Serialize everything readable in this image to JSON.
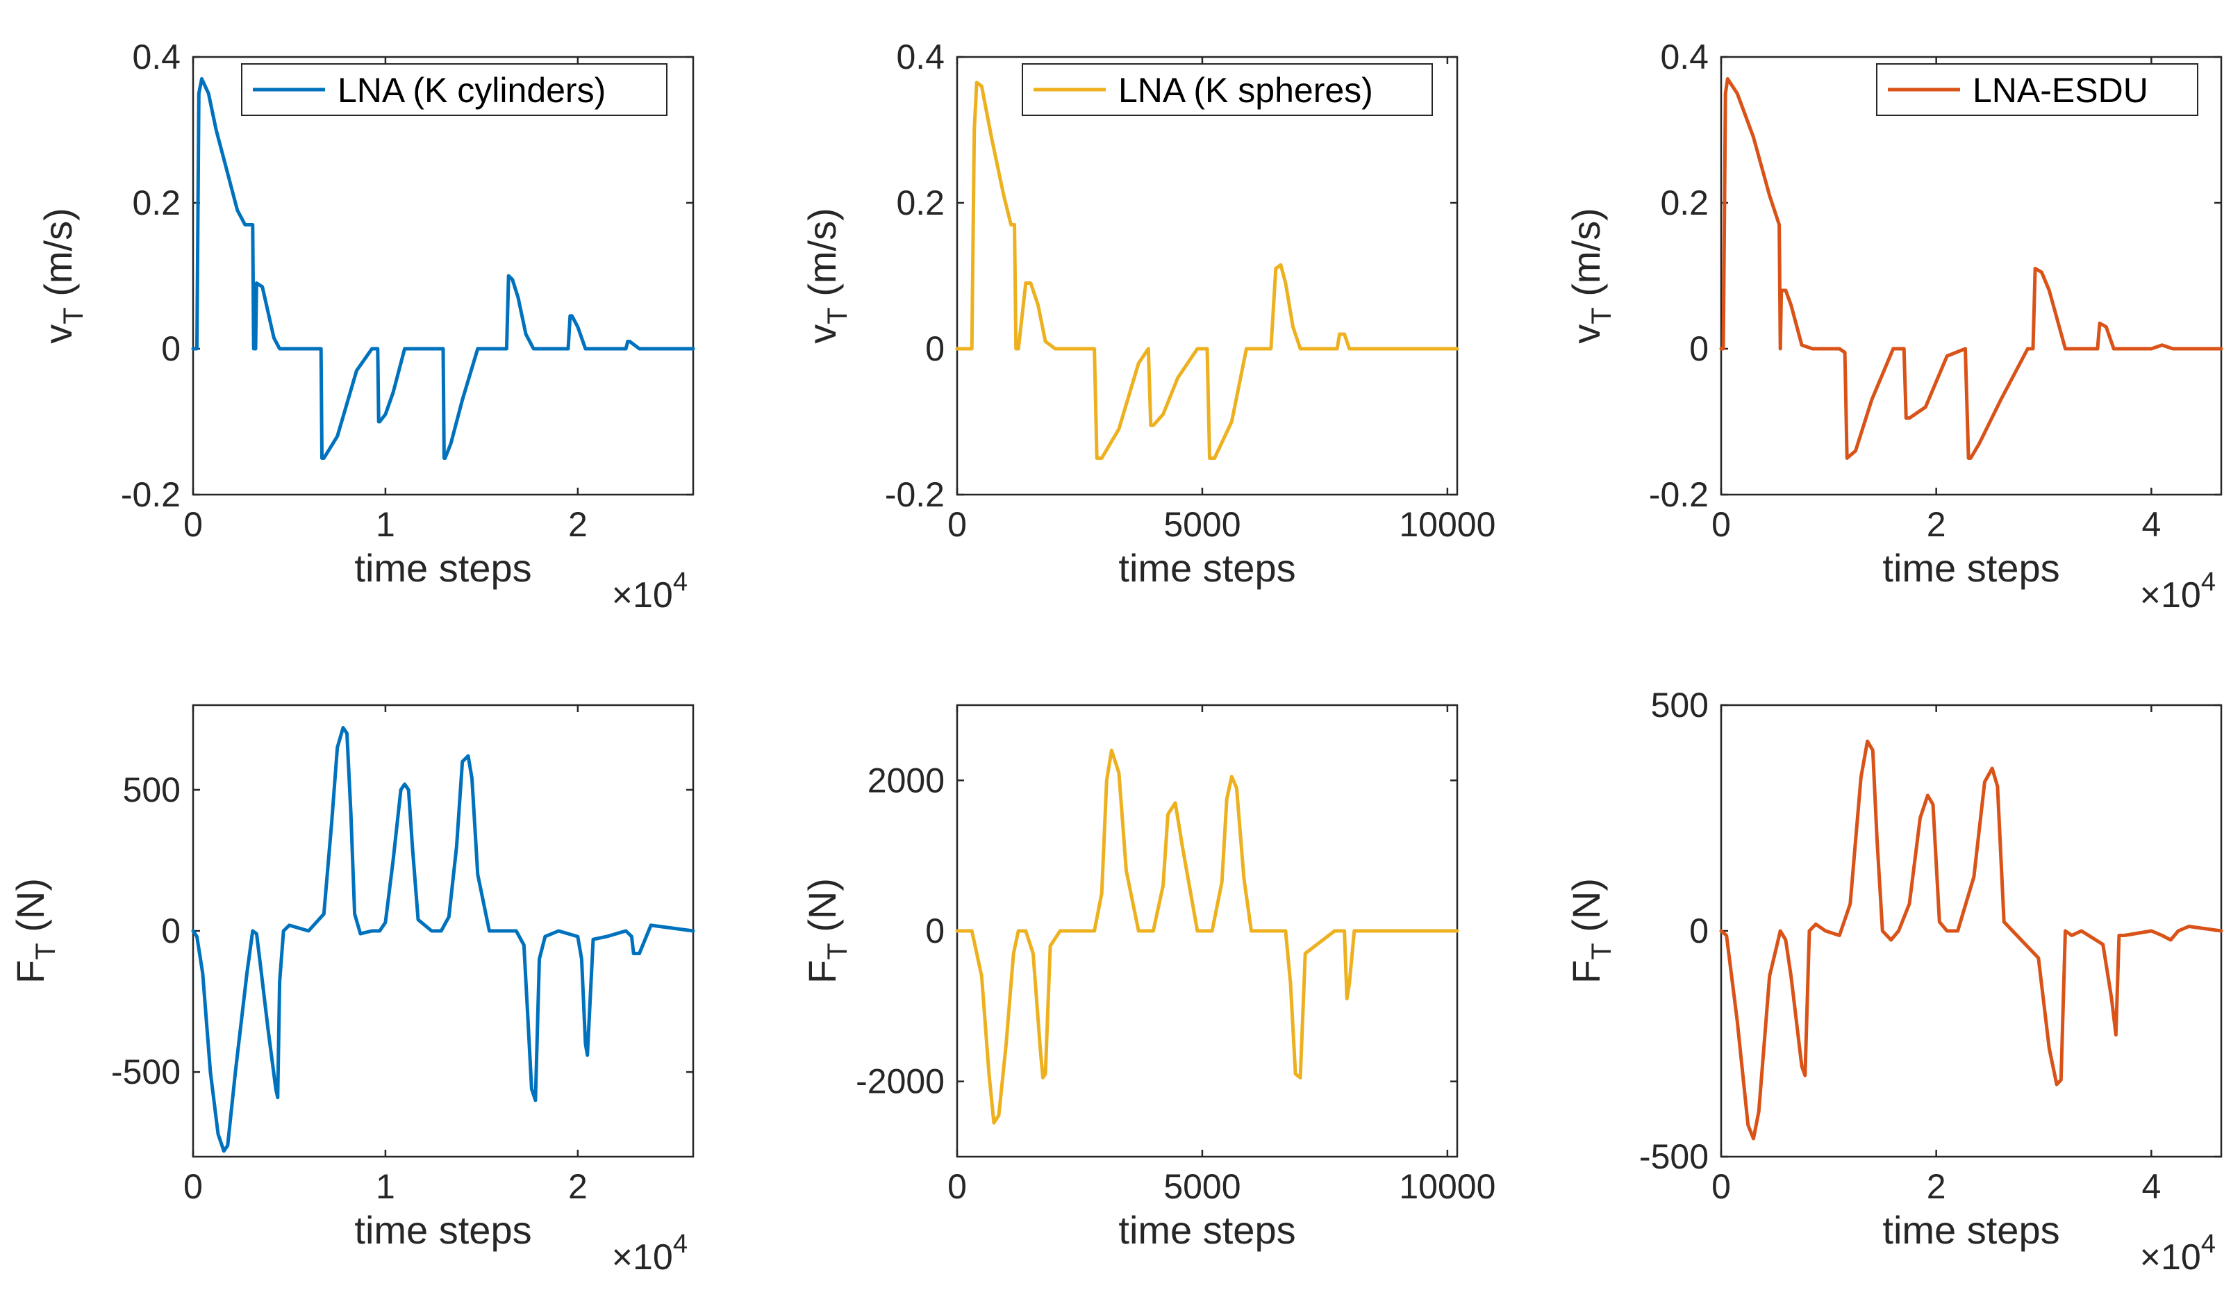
{
  "colors": {
    "blue": "#0072BD",
    "yellow": "#EDB120",
    "orange": "#D95319",
    "axis": "#262626"
  },
  "chart_data": [
    {
      "type": "line",
      "id": "vt_cyl",
      "color": "#0072BD",
      "legend": "LNA (K cylinders)",
      "xlabel": "time steps",
      "ylabel_main": "v",
      "ylabel_sub": "T",
      "ylabel_tail": " (m/s)",
      "xlim": [
        0,
        26000
      ],
      "ylim": [
        -0.2,
        0.4
      ],
      "xticks": [
        0,
        10000,
        20000
      ],
      "xtick_labels": [
        "0",
        "1",
        "2"
      ],
      "yticks": [
        -0.2,
        0,
        0.2,
        0.4
      ],
      "ytick_labels": [
        "-0.2",
        "0",
        "0.2",
        "0.4"
      ],
      "x_multiplier_base": "×10",
      "x_multiplier_exp": "4",
      "x": [
        0,
        200,
        300,
        450,
        800,
        1200,
        1700,
        2300,
        2700,
        3000,
        3100,
        3150,
        3250,
        3300,
        3600,
        3900,
        4200,
        4500,
        5000,
        6000,
        6650,
        6700,
        6800,
        7500,
        8500,
        9300,
        9600,
        9650,
        9700,
        10000,
        10400,
        11000,
        11500,
        12000,
        12800,
        13000,
        13050,
        13100,
        13400,
        14000,
        14800,
        15500,
        16000,
        16300,
        16400,
        16600,
        16900,
        17300,
        17700,
        18000,
        18500,
        19000,
        19500,
        19600,
        19700,
        20000,
        20400,
        20800,
        21500,
        22500,
        22600,
        22700,
        23200,
        24000,
        26000
      ],
      "values": [
        0,
        0,
        0.35,
        0.37,
        0.35,
        0.3,
        0.25,
        0.19,
        0.17,
        0.17,
        0.17,
        0,
        0,
        0.09,
        0.085,
        0.05,
        0.015,
        0,
        0,
        0,
        0,
        -0.15,
        -0.15,
        -0.12,
        -0.03,
        0,
        0,
        -0.1,
        -0.1,
        -0.09,
        -0.06,
        0,
        0,
        0,
        0,
        0,
        -0.15,
        -0.15,
        -0.13,
        -0.07,
        0,
        0,
        0,
        0,
        0.1,
        0.095,
        0.07,
        0.02,
        0,
        0,
        0,
        0,
        0,
        0.045,
        0.045,
        0.03,
        0,
        0,
        0,
        0,
        0.01,
        0.01,
        0,
        0,
        0
      ]
    },
    {
      "type": "line",
      "id": "vt_sph",
      "color": "#EDB120",
      "legend": "LNA (K spheres)",
      "xlabel": "time steps",
      "ylabel_main": "v",
      "ylabel_sub": "T",
      "ylabel_tail": " (m/s)",
      "xlim": [
        0,
        10200
      ],
      "ylim": [
        -0.2,
        0.4
      ],
      "xticks": [
        0,
        5000,
        10000
      ],
      "xtick_labels": [
        "0",
        "5000",
        "10000"
      ],
      "yticks": [
        -0.2,
        0,
        0.2,
        0.4
      ],
      "ytick_labels": [
        "-0.2",
        "0",
        "0.2",
        "0.4"
      ],
      "x_multiplier_base": "",
      "x_multiplier_exp": "",
      "x": [
        0,
        300,
        350,
        400,
        500,
        700,
        950,
        1100,
        1170,
        1200,
        1250,
        1400,
        1500,
        1650,
        1800,
        2000,
        2300,
        2800,
        2850,
        2950,
        3300,
        3700,
        3900,
        3950,
        4000,
        4200,
        4500,
        4900,
        5100,
        5150,
        5250,
        5600,
        5900,
        6400,
        6500,
        6600,
        6700,
        6850,
        7000,
        7200,
        7500,
        7750,
        7800,
        7900,
        8000,
        8500,
        10200
      ],
      "values": [
        0,
        0,
        0.3,
        0.365,
        0.36,
        0.29,
        0.21,
        0.17,
        0.17,
        0,
        0,
        0.09,
        0.09,
        0.06,
        0.01,
        0,
        0,
        0,
        -0.15,
        -0.15,
        -0.11,
        -0.02,
        0,
        -0.105,
        -0.105,
        -0.09,
        -0.04,
        0,
        0,
        -0.15,
        -0.15,
        -0.1,
        0,
        0,
        0.11,
        0.115,
        0.09,
        0.03,
        0,
        0,
        0,
        0,
        0.02,
        0.02,
        0,
        0,
        0
      ]
    },
    {
      "type": "line",
      "id": "vt_esdu",
      "color": "#D95319",
      "legend": "LNA-ESDU",
      "xlabel": "time steps",
      "ylabel_main": "v",
      "ylabel_sub": "T",
      "ylabel_tail": " (m/s)",
      "xlim": [
        0,
        46500
      ],
      "ylim": [
        -0.2,
        0.4
      ],
      "xticks": [
        0,
        20000,
        40000
      ],
      "xtick_labels": [
        "0",
        "2",
        "4"
      ],
      "yticks": [
        -0.2,
        0,
        0.2,
        0.4
      ],
      "ytick_labels": [
        "-0.2",
        "0",
        "0.2",
        "0.4"
      ],
      "x_multiplier_base": "×10",
      "x_multiplier_exp": "4",
      "x": [
        0,
        200,
        400,
        600,
        1500,
        3000,
        4500,
        5400,
        5500,
        5600,
        6000,
        6500,
        7500,
        8500,
        11000,
        11500,
        11700,
        12500,
        14000,
        16000,
        17000,
        17200,
        17500,
        19000,
        21000,
        22700,
        23000,
        23200,
        24000,
        26000,
        28500,
        29000,
        29200,
        29800,
        30500,
        32000,
        35000,
        35200,
        35800,
        36500,
        40000,
        41000,
        42000,
        46500
      ],
      "values": [
        0,
        0,
        0.35,
        0.37,
        0.35,
        0.29,
        0.21,
        0.17,
        0,
        0.08,
        0.08,
        0.06,
        0.005,
        0,
        0,
        -0.005,
        -0.15,
        -0.14,
        -0.07,
        0,
        0,
        -0.095,
        -0.095,
        -0.08,
        -0.01,
        0,
        -0.15,
        -0.15,
        -0.13,
        -0.07,
        0,
        0,
        0.11,
        0.105,
        0.08,
        0,
        0,
        0.035,
        0.03,
        0,
        0,
        0.005,
        0,
        0
      ]
    },
    {
      "type": "line",
      "id": "ft_cyl",
      "color": "#0072BD",
      "legend": "",
      "xlabel": "time steps",
      "ylabel_main": "F",
      "ylabel_sub": "T",
      "ylabel_tail": " (N)",
      "xlim": [
        0,
        26000
      ],
      "ylim": [
        -800,
        800
      ],
      "xticks": [
        0,
        10000,
        20000
      ],
      "xtick_labels": [
        "0",
        "1",
        "2"
      ],
      "yticks": [
        -500,
        0,
        500
      ],
      "ytick_labels": [
        "-500",
        "0",
        "500"
      ],
      "x_multiplier_base": "×10",
      "x_multiplier_exp": "4",
      "x": [
        0,
        200,
        500,
        900,
        1300,
        1600,
        1800,
        2200,
        2800,
        3100,
        3300,
        3500,
        3900,
        4300,
        4400,
        4500,
        4700,
        5000,
        6000,
        6800,
        7200,
        7500,
        7800,
        8000,
        8200,
        8400,
        8700,
        9300,
        9700,
        10000,
        10400,
        10800,
        11000,
        11200,
        11400,
        11700,
        12400,
        12900,
        13300,
        13700,
        14000,
        14300,
        14500,
        14800,
        15400,
        16200,
        16800,
        17200,
        17400,
        17600,
        17800,
        18000,
        18300,
        19000,
        20000,
        20200,
        20400,
        20500,
        20800,
        21500,
        22500,
        22800,
        22900,
        23200,
        23800,
        26000
      ],
      "values": [
        0,
        -20,
        -150,
        -500,
        -720,
        -780,
        -760,
        -500,
        -150,
        0,
        -10,
        -120,
        -350,
        -560,
        -590,
        -180,
        0,
        20,
        0,
        60,
        380,
        650,
        720,
        700,
        420,
        60,
        -10,
        0,
        0,
        30,
        250,
        500,
        520,
        500,
        300,
        40,
        0,
        0,
        50,
        300,
        600,
        620,
        540,
        200,
        0,
        0,
        0,
        -50,
        -300,
        -560,
        -600,
        -100,
        -20,
        0,
        -20,
        -100,
        -400,
        -440,
        -30,
        -20,
        0,
        -20,
        -80,
        -80,
        20,
        0
      ]
    },
    {
      "type": "line",
      "id": "ft_sph",
      "color": "#EDB120",
      "legend": "",
      "xlabel": "time steps",
      "ylabel_main": "F",
      "ylabel_sub": "T",
      "ylabel_tail": " (N)",
      "xlim": [
        0,
        10200
      ],
      "ylim": [
        -3000,
        3000
      ],
      "xticks": [
        0,
        5000,
        10000
      ],
      "xtick_labels": [
        "0",
        "5000",
        "10000"
      ],
      "yticks": [
        -2000,
        0,
        2000
      ],
      "ytick_labels": [
        "-2000",
        "0",
        "2000"
      ],
      "x_multiplier_base": "",
      "x_multiplier_exp": "",
      "x": [
        0,
        300,
        500,
        650,
        750,
        850,
        1000,
        1150,
        1250,
        1400,
        1550,
        1700,
        1750,
        1800,
        1900,
        2100,
        2800,
        2950,
        3050,
        3150,
        3300,
        3450,
        3700,
        4000,
        4200,
        4300,
        4450,
        4600,
        4900,
        5200,
        5400,
        5500,
        5600,
        5700,
        5850,
        6000,
        6700,
        6800,
        6900,
        7000,
        7100,
        7700,
        7900,
        7950,
        8000,
        8100,
        10200
      ],
      "values": [
        0,
        0,
        -600,
        -1900,
        -2550,
        -2450,
        -1500,
        -300,
        0,
        0,
        -300,
        -1600,
        -1950,
        -1900,
        -200,
        0,
        0,
        500,
        2000,
        2400,
        2100,
        800,
        0,
        0,
        600,
        1550,
        1700,
        1100,
        0,
        0,
        650,
        1750,
        2050,
        1900,
        700,
        0,
        0,
        -700,
        -1900,
        -1950,
        -300,
        0,
        0,
        -900,
        -700,
        0,
        0
      ]
    },
    {
      "type": "line",
      "id": "ft_esdu",
      "color": "#D95319",
      "legend": "",
      "xlabel": "time steps",
      "ylabel_main": "F",
      "ylabel_sub": "T",
      "ylabel_tail": " (N)",
      "xlim": [
        0,
        46500
      ],
      "ylim": [
        -500,
        500
      ],
      "xticks": [
        0,
        20000,
        40000
      ],
      "xtick_labels": [
        "0",
        "2",
        "4"
      ],
      "yticks": [
        -500,
        0,
        500
      ],
      "ytick_labels": [
        "-500",
        "0",
        "500"
      ],
      "x_multiplier_base": "×10",
      "x_multiplier_exp": "4",
      "x": [
        0,
        500,
        1500,
        2500,
        3000,
        3500,
        4500,
        5500,
        6000,
        6500,
        7500,
        7800,
        8200,
        8800,
        9700,
        11000,
        12000,
        13000,
        13600,
        14100,
        14500,
        15000,
        15800,
        16500,
        17500,
        18500,
        19200,
        19700,
        20300,
        21000,
        22000,
        23500,
        24500,
        25200,
        25700,
        26300,
        27500,
        29500,
        30500,
        31200,
        31600,
        32000,
        32600,
        33500,
        35500,
        36300,
        36700,
        37000,
        37500,
        40000,
        41000,
        41800,
        42500,
        43500,
        46500
      ],
      "values": [
        0,
        -10,
        -200,
        -430,
        -460,
        -400,
        -100,
        0,
        -20,
        -100,
        -300,
        -320,
        0,
        15,
        0,
        -10,
        60,
        340,
        420,
        400,
        200,
        0,
        -20,
        0,
        60,
        250,
        300,
        280,
        20,
        0,
        0,
        120,
        330,
        360,
        320,
        20,
        -10,
        -60,
        -260,
        -340,
        -330,
        0,
        -10,
        0,
        -30,
        -150,
        -230,
        -10,
        -10,
        0,
        -10,
        -20,
        0,
        10,
        0
      ]
    }
  ]
}
